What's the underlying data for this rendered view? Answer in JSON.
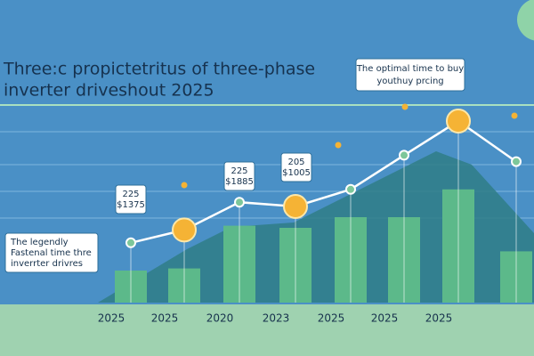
{
  "chart_data": {
    "type": "bar",
    "title_lines": [
      "Three:c propictetritus of three-phase",
      "inverter driveshout 2025"
    ],
    "categories": [
      "2025",
      "2025",
      "2020",
      "2023",
      "2025",
      "2025",
      "2025",
      null
    ],
    "values": [
      15,
      16,
      36,
      35,
      40,
      40,
      53,
      24
    ],
    "color": "#5cb98a",
    "line": {
      "color": "#ffffff",
      "values": [
        28,
        34,
        47,
        45,
        53,
        69,
        85,
        66
      ],
      "highlight_color": "#f5b335",
      "highlights": [
        1,
        3,
        6
      ]
    },
    "ylim": [
      0,
      100
    ],
    "annotations": [
      {
        "lines": [
          "225",
          "$1375"
        ]
      },
      {
        "lines": [
          "225",
          "$1885"
        ]
      },
      {
        "lines": [
          "205",
          "$1005"
        ]
      },
      {
        "lines": [
          "The optimal time to buy",
          "youthuy prcing"
        ]
      },
      {
        "lines": [
          "The legendly",
          "Fastenal time thre",
          "inverrter drivres"
        ]
      }
    ]
  }
}
